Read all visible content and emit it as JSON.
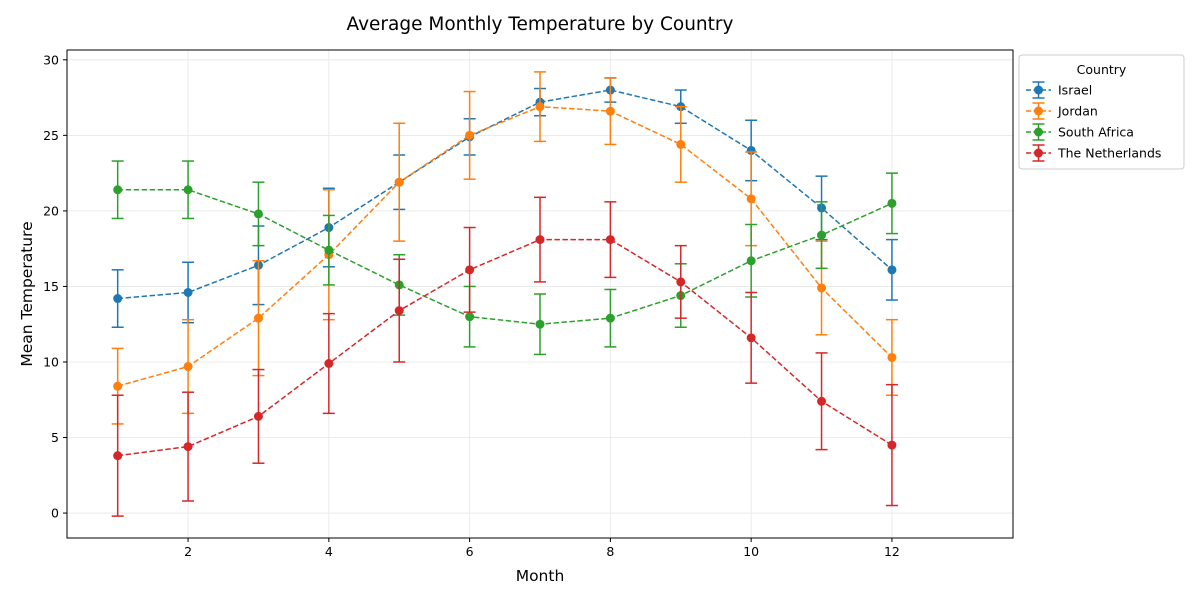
{
  "chart_data": {
    "type": "line",
    "title": "Average Monthly Temperature by Country",
    "xlabel": "Month",
    "ylabel": "Mean Temperature",
    "xlim": [
      0.28,
      13.72
    ],
    "ylim": [
      -1.65,
      30.65
    ],
    "xticks": [
      2,
      4,
      6,
      8,
      10,
      12
    ],
    "yticks": [
      0,
      5,
      10,
      15,
      20,
      25,
      30
    ],
    "grid": true,
    "legend": {
      "title": "Country",
      "placement": "outside-top-right"
    },
    "x": [
      1,
      2,
      3,
      4,
      5,
      6,
      7,
      8,
      9,
      10,
      11,
      12
    ],
    "series": [
      {
        "name": "Israel",
        "color": "#1f77b4",
        "values": [
          14.2,
          14.6,
          16.4,
          18.9,
          21.9,
          24.9,
          27.2,
          28.0,
          26.9,
          24.0,
          20.2,
          16.1
        ],
        "errors": [
          1.9,
          2.0,
          2.6,
          2.6,
          1.8,
          1.2,
          0.9,
          0.8,
          1.1,
          2.0,
          2.1,
          2.0
        ]
      },
      {
        "name": "Jordan",
        "color": "#ff7f0e",
        "values": [
          8.4,
          9.7,
          12.9,
          17.1,
          21.9,
          25.0,
          26.9,
          26.6,
          24.4,
          20.8,
          14.9,
          10.3
        ],
        "errors": [
          2.5,
          3.1,
          3.8,
          4.3,
          3.9,
          2.9,
          2.3,
          2.2,
          2.5,
          3.1,
          3.1,
          2.5
        ]
      },
      {
        "name": "South Africa",
        "color": "#2ca02c",
        "values": [
          21.4,
          21.4,
          19.8,
          17.4,
          15.1,
          13.0,
          12.5,
          12.9,
          14.4,
          16.7,
          18.4,
          20.5
        ],
        "errors": [
          1.9,
          1.9,
          2.1,
          2.3,
          2.0,
          2.0,
          2.0,
          1.9,
          2.1,
          2.4,
          2.2,
          2.0
        ]
      },
      {
        "name": "The Netherlands",
        "color": "#d62728",
        "values": [
          3.8,
          4.4,
          6.4,
          9.9,
          13.4,
          16.1,
          18.1,
          18.1,
          15.3,
          11.6,
          7.4,
          4.5
        ],
        "errors": [
          4.0,
          3.6,
          3.1,
          3.3,
          3.4,
          2.8,
          2.8,
          2.5,
          2.4,
          3.0,
          3.2,
          4.0
        ]
      }
    ]
  }
}
